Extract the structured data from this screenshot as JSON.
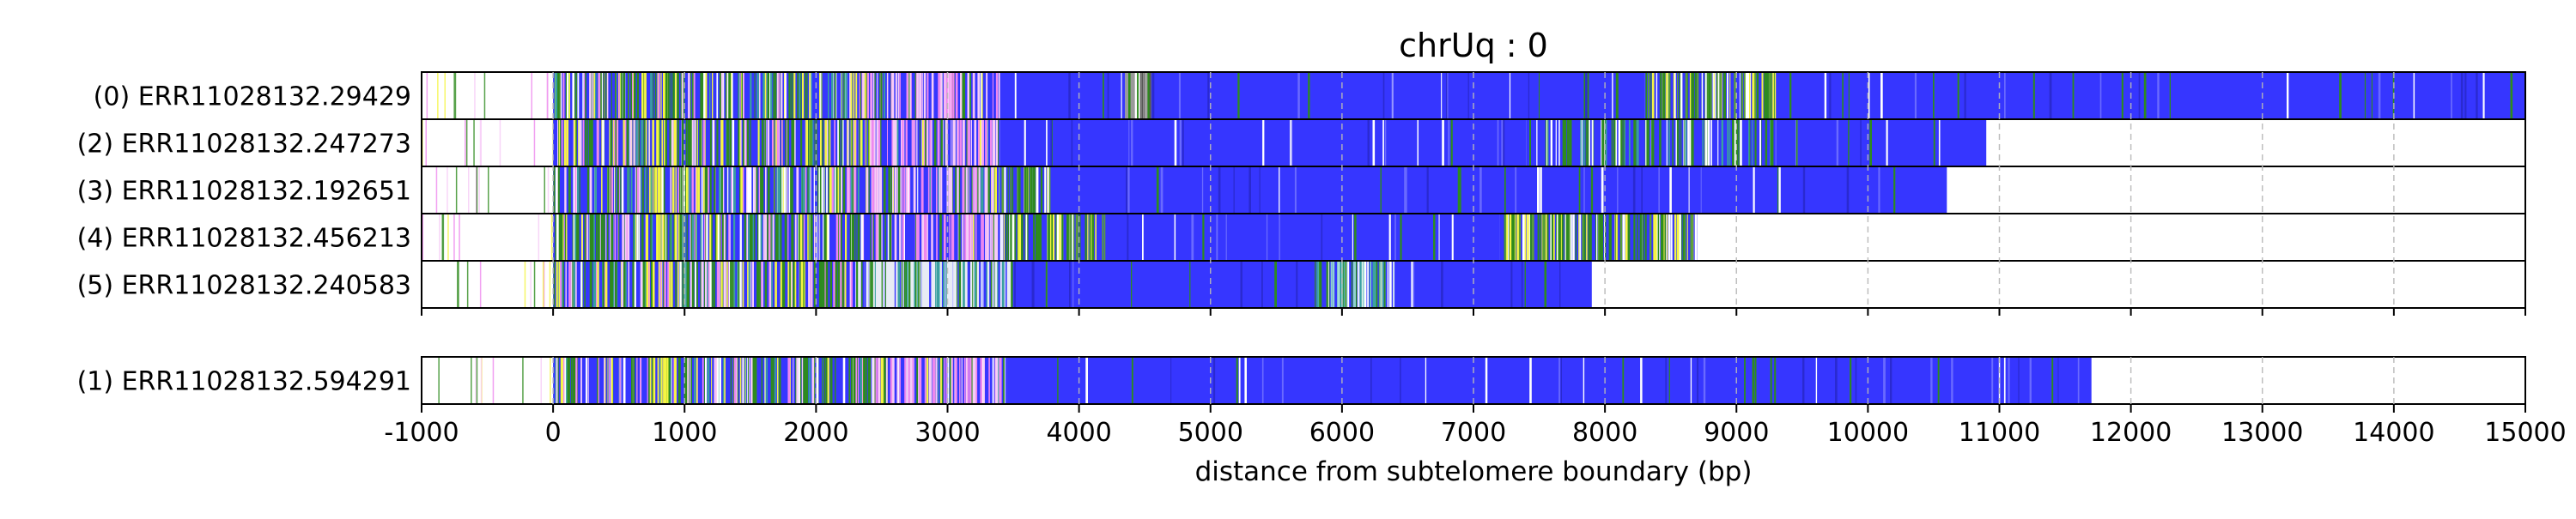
{
  "chart_data": {
    "type": "heatmap",
    "title": "chrUq : 0",
    "xlabel": "distance from subtelomere boundary (bp)",
    "ylabel": "",
    "xlim": [
      -1000,
      15000
    ],
    "x_ticks": [
      -1000,
      0,
      1000,
      2000,
      3000,
      4000,
      5000,
      6000,
      7000,
      8000,
      9000,
      10000,
      11000,
      12000,
      13000,
      14000,
      15000
    ],
    "x_tick_labels": [
      "-1000",
      "0",
      "1000",
      "2000",
      "3000",
      "4000",
      "5000",
      "6000",
      "7000",
      "8000",
      "9000",
      "10000",
      "11000",
      "12000",
      "13000",
      "14000",
      "15000"
    ],
    "grid": "vertical dashed at major ticks",
    "panels": [
      {
        "reads": [
          {
            "label": "(0) ERR11028132.29429",
            "end": 15000,
            "regions": [
              [
                0,
                3400,
                "mixed"
              ],
              [
                3400,
                4350,
                "blue"
              ],
              [
                4350,
                4550,
                "gray"
              ],
              [
                4550,
                8300,
                "blue"
              ],
              [
                8300,
                9300,
                "green"
              ],
              [
                9300,
                15000,
                "blue"
              ]
            ]
          },
          {
            "label": "(2) ERR11028132.247273",
            "end": 10900,
            "regions": [
              [
                0,
                3400,
                "mixed"
              ],
              [
                3400,
                7400,
                "blue"
              ],
              [
                7400,
                9300,
                "greenblue"
              ],
              [
                9300,
                10900,
                "blue"
              ]
            ]
          },
          {
            "label": "(3) ERR11028132.192651",
            "end": 10600,
            "regions": [
              [
                0,
                3400,
                "mixed"
              ],
              [
                3400,
                3800,
                "green"
              ],
              [
                3800,
                10600,
                "blue"
              ]
            ]
          },
          {
            "label": "(4) ERR11028132.456213",
            "end": 8700,
            "regions": [
              [
                0,
                3400,
                "mixed"
              ],
              [
                3400,
                4200,
                "green"
              ],
              [
                4200,
                7200,
                "blue"
              ],
              [
                7200,
                8700,
                "green"
              ]
            ]
          },
          {
            "label": "(5) ERR11028132.240583",
            "end": 7900,
            "regions": [
              [
                0,
                2300,
                "mixed"
              ],
              [
                2300,
                3500,
                "pale"
              ],
              [
                3500,
                5800,
                "blue"
              ],
              [
                5800,
                6400,
                "teal"
              ],
              [
                6400,
                7900,
                "blue"
              ]
            ]
          }
        ]
      },
      {
        "reads": [
          {
            "label": "(1) ERR11028132.594291",
            "end": 11700,
            "regions": [
              [
                0,
                3450,
                "mixed"
              ],
              [
                3450,
                11700,
                "blue"
              ]
            ]
          }
        ]
      }
    ],
    "colors": {
      "base_blue": "#3636ff",
      "green": "#2e8b1e",
      "yellow": "#f5f542",
      "pink": "#ee88ee",
      "light_pink": "#f6ccf6",
      "teal": "#3aa0a0",
      "gray": "#888888",
      "white": "#ffffff"
    }
  }
}
